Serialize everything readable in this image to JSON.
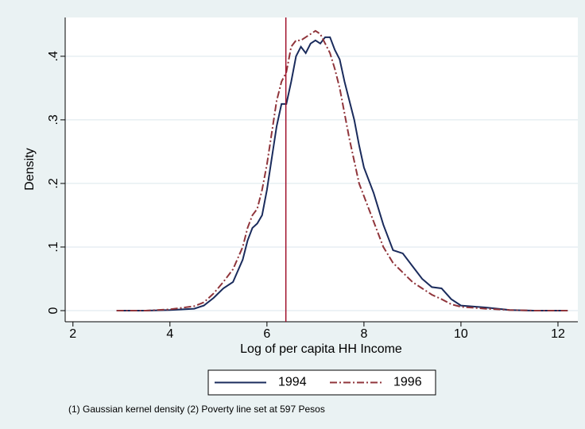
{
  "chart_data": {
    "type": "line",
    "x_label": "Log of per capita HH Income",
    "y_label": "Density",
    "note": "(1) Gaussian kernel density (2) Poverty line set at 597 Pesos",
    "x": [
      2.9,
      3.5,
      4.0,
      4.5,
      4.7,
      4.9,
      5.1,
      5.3,
      5.5,
      5.6,
      5.7,
      5.8,
      5.9,
      6.0,
      6.1,
      6.2,
      6.3,
      6.4,
      6.5,
      6.6,
      6.7,
      6.8,
      6.9,
      7.0,
      7.1,
      7.2,
      7.3,
      7.4,
      7.5,
      7.6,
      7.7,
      7.8,
      7.9,
      8.0,
      8.2,
      8.4,
      8.6,
      8.8,
      9.0,
      9.2,
      9.4,
      9.6,
      9.8,
      10.0,
      10.5,
      11.0,
      11.5,
      12.2
    ],
    "series": [
      {
        "name": "1994",
        "color": "#1a2b5c",
        "line_style": "solid",
        "values": [
          0,
          0,
          0.001,
          0.003,
          0.008,
          0.02,
          0.035,
          0.045,
          0.08,
          0.11,
          0.13,
          0.137,
          0.15,
          0.19,
          0.24,
          0.29,
          0.325,
          0.325,
          0.36,
          0.4,
          0.415,
          0.405,
          0.42,
          0.425,
          0.42,
          0.43,
          0.43,
          0.41,
          0.395,
          0.36,
          0.33,
          0.3,
          0.26,
          0.225,
          0.185,
          0.135,
          0.095,
          0.09,
          0.07,
          0.05,
          0.037,
          0.035,
          0.018,
          0.008,
          0.005,
          0.001,
          0,
          0
        ]
      },
      {
        "name": "1996",
        "color": "#90353b",
        "line_style": "dash-dot",
        "values": [
          0,
          0,
          0.002,
          0.007,
          0.013,
          0.027,
          0.045,
          0.065,
          0.1,
          0.13,
          0.15,
          0.16,
          0.19,
          0.23,
          0.28,
          0.33,
          0.36,
          0.375,
          0.415,
          0.425,
          0.425,
          0.43,
          0.435,
          0.44,
          0.435,
          0.42,
          0.405,
          0.38,
          0.35,
          0.31,
          0.27,
          0.235,
          0.2,
          0.18,
          0.14,
          0.1,
          0.075,
          0.06,
          0.045,
          0.035,
          0.025,
          0.018,
          0.01,
          0.006,
          0.003,
          0.001,
          0,
          0
        ]
      }
    ],
    "xline": {
      "value": 6.39,
      "color": "#a0102a"
    },
    "xlim": [
      1.84,
      12.41
    ],
    "ylim": [
      -0.0175,
      0.461
    ],
    "xticks": [
      2,
      4,
      6,
      8,
      10,
      12
    ],
    "yticks": [
      {
        "value": 0,
        "label": "0"
      },
      {
        "value": 0.1,
        "label": ".1"
      },
      {
        "value": 0.2,
        "label": ".2"
      },
      {
        "value": 0.3,
        "label": ".3"
      },
      {
        "value": 0.4,
        "label": ".4"
      }
    ],
    "grid": true
  }
}
